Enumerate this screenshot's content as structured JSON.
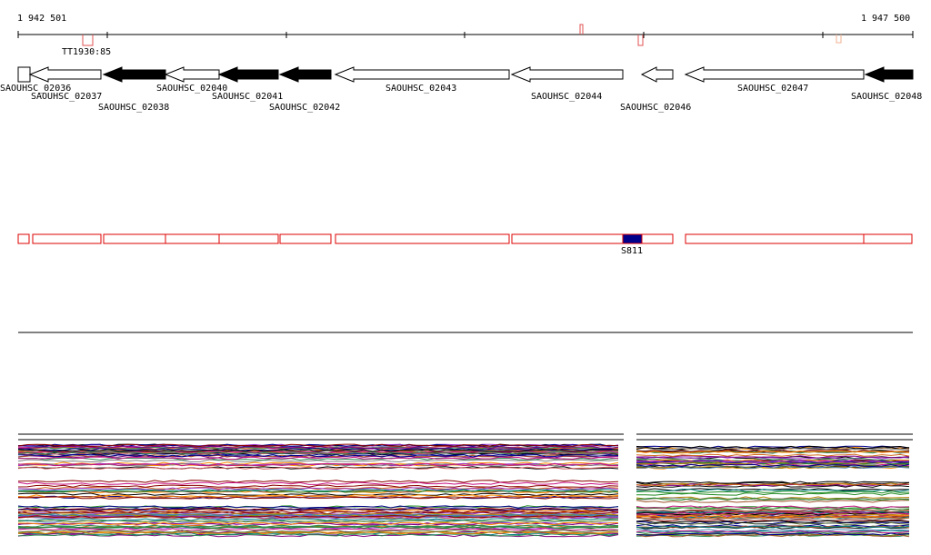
{
  "coords": {
    "start": "1 942 501",
    "end": "1 947 500"
  },
  "terminator": "TT1930:85",
  "genes": [
    {
      "name": "SAOUHSC_02036",
      "strand": "+",
      "color": "white"
    },
    {
      "name": "SAOUHSC_02037",
      "strand": "-",
      "color": "white"
    },
    {
      "name": "SAOUHSC_02038",
      "strand": "-",
      "color": "black"
    },
    {
      "name": "SAOUHSC_02040",
      "strand": "-",
      "color": "white"
    },
    {
      "name": "SAOUHSC_02041",
      "strand": "-",
      "color": "black"
    },
    {
      "name": "SAOUHSC_02042",
      "strand": "-",
      "color": "black"
    },
    {
      "name": "SAOUHSC_02043",
      "strand": "-",
      "color": "white"
    },
    {
      "name": "SAOUHSC_02044",
      "strand": "-",
      "color": "white"
    },
    {
      "name": "SAOUHSC_02046",
      "strand": "-",
      "color": "white"
    },
    {
      "name": "SAOUHSC_02047",
      "strand": "-",
      "color": "white"
    },
    {
      "name": "SAOUHSC_02048",
      "strand": "-",
      "color": "black"
    }
  ],
  "highlight": {
    "label": "S811",
    "color": "#00008b"
  },
  "colors": {
    "feature_outline": "#dd0000",
    "gene_fill_dark": "#000000",
    "axis": "#000000"
  },
  "expression_panels": 2
}
